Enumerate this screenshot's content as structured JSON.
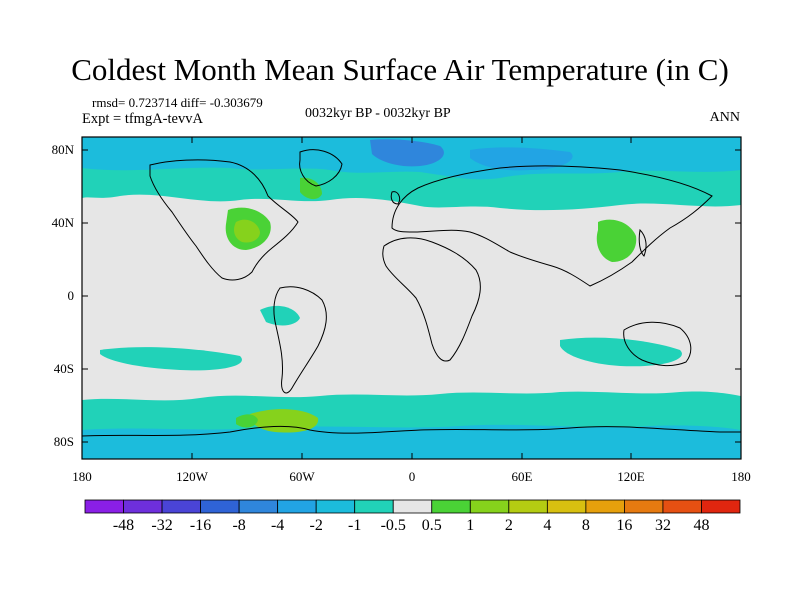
{
  "title": "Coldest Month Mean Surface Air Temperature (in C)",
  "stats_line": "rmsd= 0.723714 diff= -0.303679",
  "experiment": "Expt = tfmgA-tevvA",
  "period": "0032kyr BP - 0032kyr BP",
  "season": "ANN",
  "lat_ticks": [
    "80N",
    "40N",
    "0",
    "40S",
    "80S"
  ],
  "lon_ticks": [
    "180",
    "120W",
    "60W",
    "0",
    "60E",
    "120E",
    "180"
  ],
  "colorbar": {
    "labels": [
      "-48",
      "-32",
      "-16",
      "-8",
      "-4",
      "-2",
      "-1",
      "-0.5",
      "0.5",
      "1",
      "2",
      "4",
      "8",
      "16",
      "32",
      "48"
    ],
    "colors": [
      "#8a1fe6",
      "#6e2fdc",
      "#4a44d6",
      "#2f63d6",
      "#2f86dc",
      "#22a4e4",
      "#1cbcdc",
      "#21d2b8",
      "#e6e6e6",
      "#4ad236",
      "#86d21c",
      "#b4cc12",
      "#d8c010",
      "#e6a00c",
      "#e67a10",
      "#e65012",
      "#e0260f"
    ]
  },
  "colors": {
    "neutral": "#e6e6e6",
    "cool_light": "#21d2b8",
    "cool": "#1cbcdc",
    "cool_mid": "#22a4e4",
    "cool_strong": "#2f86dc",
    "warm_light": "#4ad236",
    "warm": "#86d21c",
    "coast": "#000000"
  }
}
